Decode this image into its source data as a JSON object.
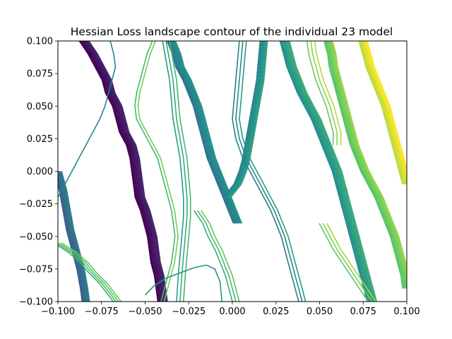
{
  "chart_data": {
    "type": "contour",
    "title": "Hessian Loss landscape contour of the individual 23 model",
    "xlabel": "",
    "ylabel": "",
    "xlim": [
      -0.1,
      0.1
    ],
    "ylim": [
      -0.1,
      0.1
    ],
    "x_ticks": [
      -0.1,
      -0.075,
      -0.05,
      -0.025,
      0.0,
      0.025,
      0.05,
      0.075,
      0.1
    ],
    "x_tick_labels": [
      "−0.100",
      "−0.075",
      "−0.050",
      "−0.025",
      "0.000",
      "0.025",
      "0.050",
      "0.075",
      "0.100"
    ],
    "y_ticks": [
      -0.1,
      -0.075,
      -0.05,
      -0.025,
      0.0,
      0.025,
      0.05,
      0.075,
      0.1
    ],
    "y_tick_labels": [
      "−0.100",
      "−0.075",
      "−0.050",
      "−0.025",
      "0.000",
      "0.025",
      "0.050",
      "0.075",
      "0.100"
    ],
    "grid": false,
    "colormap": "viridis",
    "colormap_stops": [
      "#440154",
      "#3b528b",
      "#21918c",
      "#5ec962",
      "#fde725"
    ],
    "contour_bands": [
      {
        "name": "left-dark-band",
        "level_fraction": 0.05,
        "lines": 10,
        "spacing": 0.0006,
        "points": [
          [
            -0.085,
            0.1
          ],
          [
            -0.08,
            0.09
          ],
          [
            -0.076,
            0.08
          ],
          [
            -0.072,
            0.07
          ],
          [
            -0.07,
            0.06
          ],
          [
            -0.066,
            0.05
          ],
          [
            -0.064,
            0.04
          ],
          [
            -0.062,
            0.03
          ],
          [
            -0.058,
            0.02
          ],
          [
            -0.056,
            0.01
          ],
          [
            -0.055,
            0.0
          ],
          [
            -0.054,
            -0.01
          ],
          [
            -0.053,
            -0.02
          ],
          [
            -0.05,
            -0.03
          ],
          [
            -0.048,
            -0.04
          ],
          [
            -0.046,
            -0.05
          ],
          [
            -0.045,
            -0.06
          ],
          [
            -0.044,
            -0.07
          ],
          [
            -0.042,
            -0.08
          ],
          [
            -0.041,
            -0.09
          ],
          [
            -0.04,
            -0.1
          ]
        ]
      },
      {
        "name": "far-left-band",
        "level_fraction": 0.35,
        "lines": 8,
        "spacing": 0.0006,
        "points": [
          [
            -0.1,
            0.0
          ],
          [
            -0.097,
            -0.015
          ],
          [
            -0.095,
            -0.03
          ],
          [
            -0.093,
            -0.045
          ],
          [
            -0.09,
            -0.06
          ],
          [
            -0.087,
            -0.075
          ],
          [
            -0.085,
            -0.09
          ],
          [
            -0.084,
            -0.1
          ]
        ]
      },
      {
        "name": "center-left-teal-band",
        "level_fraction": 0.45,
        "lines": 9,
        "spacing": 0.0006,
        "points": [
          [
            -0.035,
            0.1
          ],
          [
            -0.032,
            0.09
          ],
          [
            -0.03,
            0.08
          ],
          [
            -0.026,
            0.07
          ],
          [
            -0.023,
            0.06
          ],
          [
            -0.02,
            0.05
          ],
          [
            -0.018,
            0.04
          ],
          [
            -0.016,
            0.03
          ],
          [
            -0.014,
            0.02
          ],
          [
            -0.012,
            0.01
          ],
          [
            -0.009,
            0.0
          ],
          [
            -0.006,
            -0.01
          ],
          [
            -0.003,
            -0.02
          ],
          [
            0.0,
            -0.03
          ],
          [
            0.003,
            -0.04
          ]
        ]
      },
      {
        "name": "center-teal-branch",
        "level_fraction": 0.5,
        "lines": 8,
        "spacing": 0.0006,
        "points": [
          [
            0.018,
            0.1
          ],
          [
            0.017,
            0.085
          ],
          [
            0.016,
            0.07
          ],
          [
            0.014,
            0.055
          ],
          [
            0.012,
            0.04
          ],
          [
            0.01,
            0.025
          ],
          [
            0.008,
            0.01
          ],
          [
            0.006,
            0.0
          ],
          [
            0.003,
            -0.01
          ],
          [
            0.0,
            -0.015
          ],
          [
            -0.003,
            -0.02
          ]
        ]
      },
      {
        "name": "right-teal-band",
        "level_fraction": 0.55,
        "lines": 10,
        "spacing": 0.0006,
        "points": [
          [
            0.03,
            0.1
          ],
          [
            0.032,
            0.09
          ],
          [
            0.034,
            0.08
          ],
          [
            0.037,
            0.07
          ],
          [
            0.04,
            0.06
          ],
          [
            0.044,
            0.05
          ],
          [
            0.048,
            0.04
          ],
          [
            0.051,
            0.03
          ],
          [
            0.054,
            0.02
          ],
          [
            0.057,
            0.01
          ],
          [
            0.06,
            0.0
          ],
          [
            0.062,
            -0.01
          ],
          [
            0.064,
            -0.02
          ],
          [
            0.066,
            -0.03
          ],
          [
            0.068,
            -0.04
          ],
          [
            0.07,
            -0.05
          ],
          [
            0.072,
            -0.06
          ],
          [
            0.074,
            -0.07
          ],
          [
            0.076,
            -0.08
          ],
          [
            0.078,
            -0.09
          ],
          [
            0.08,
            -0.1
          ]
        ]
      },
      {
        "name": "right-green-band",
        "level_fraction": 0.78,
        "lines": 9,
        "spacing": 0.0006,
        "points": [
          [
            0.055,
            0.1
          ],
          [
            0.057,
            0.09
          ],
          [
            0.058,
            0.08
          ],
          [
            0.06,
            0.07
          ],
          [
            0.062,
            0.06
          ],
          [
            0.064,
            0.05
          ],
          [
            0.066,
            0.04
          ],
          [
            0.068,
            0.03
          ],
          [
            0.07,
            0.02
          ],
          [
            0.073,
            0.01
          ],
          [
            0.076,
            0.0
          ],
          [
            0.08,
            -0.01
          ],
          [
            0.084,
            -0.02
          ],
          [
            0.087,
            -0.03
          ],
          [
            0.09,
            -0.04
          ],
          [
            0.093,
            -0.05
          ],
          [
            0.095,
            -0.06
          ],
          [
            0.097,
            -0.07
          ],
          [
            0.099,
            -0.08
          ],
          [
            0.1,
            -0.09
          ]
        ]
      },
      {
        "name": "right-yellow-band",
        "level_fraction": 0.95,
        "lines": 9,
        "spacing": 0.0006,
        "points": [
          [
            0.075,
            0.1
          ],
          [
            0.077,
            0.09
          ],
          [
            0.079,
            0.08
          ],
          [
            0.082,
            0.07
          ],
          [
            0.085,
            0.06
          ],
          [
            0.088,
            0.05
          ],
          [
            0.09,
            0.04
          ],
          [
            0.092,
            0.03
          ],
          [
            0.094,
            0.02
          ],
          [
            0.096,
            0.01
          ],
          [
            0.098,
            0.0
          ],
          [
            0.1,
            -0.01
          ]
        ]
      },
      {
        "name": "lower-left-green-lines",
        "level_fraction": 0.7,
        "lines": 4,
        "spacing": 0.0015,
        "points": [
          [
            -0.1,
            -0.055
          ],
          [
            -0.092,
            -0.062
          ],
          [
            -0.085,
            -0.07
          ],
          [
            -0.08,
            -0.078
          ],
          [
            -0.074,
            -0.086
          ],
          [
            -0.07,
            -0.093
          ],
          [
            -0.066,
            -0.1
          ]
        ]
      },
      {
        "name": "left-teal-line",
        "level_fraction": 0.45,
        "lines": 1,
        "spacing": 0.0,
        "points": [
          [
            -0.07,
            0.1
          ],
          [
            -0.068,
            0.09
          ],
          [
            -0.067,
            0.08
          ],
          [
            -0.069,
            0.07
          ],
          [
            -0.071,
            0.06
          ],
          [
            -0.073,
            0.05
          ],
          [
            -0.076,
            0.04
          ],
          [
            -0.08,
            0.03
          ],
          [
            -0.084,
            0.02
          ],
          [
            -0.088,
            0.01
          ],
          [
            -0.092,
            0.0
          ],
          [
            -0.096,
            -0.01
          ],
          [
            -0.1,
            -0.02
          ]
        ]
      },
      {
        "name": "left-green-line",
        "level_fraction": 0.72,
        "lines": 2,
        "spacing": 0.0018,
        "points": [
          [
            -0.045,
            0.1
          ],
          [
            -0.048,
            0.09
          ],
          [
            -0.05,
            0.08
          ],
          [
            -0.052,
            0.07
          ],
          [
            -0.054,
            0.06
          ],
          [
            -0.055,
            0.05
          ],
          [
            -0.054,
            0.04
          ],
          [
            -0.05,
            0.03
          ],
          [
            -0.046,
            0.02
          ],
          [
            -0.042,
            0.01
          ],
          [
            -0.04,
            0.0
          ],
          [
            -0.038,
            -0.01
          ],
          [
            -0.036,
            -0.02
          ],
          [
            -0.034,
            -0.03
          ],
          [
            -0.033,
            -0.04
          ],
          [
            -0.032,
            -0.05
          ],
          [
            -0.033,
            -0.06
          ],
          [
            -0.034,
            -0.07
          ],
          [
            -0.036,
            -0.08
          ],
          [
            -0.038,
            -0.09
          ],
          [
            -0.04,
            -0.1
          ]
        ]
      },
      {
        "name": "center-green-lines",
        "level_fraction": 0.6,
        "lines": 3,
        "spacing": 0.002,
        "points": [
          [
            -0.038,
            0.1
          ],
          [
            -0.036,
            0.085
          ],
          [
            -0.034,
            0.07
          ],
          [
            -0.033,
            0.055
          ],
          [
            -0.032,
            0.04
          ],
          [
            -0.03,
            0.025
          ],
          [
            -0.028,
            0.01
          ],
          [
            -0.027,
            -0.005
          ],
          [
            -0.026,
            -0.02
          ],
          [
            -0.026,
            -0.035
          ],
          [
            -0.027,
            -0.05
          ],
          [
            -0.028,
            -0.065
          ],
          [
            -0.029,
            -0.08
          ],
          [
            -0.03,
            -0.1
          ]
        ]
      },
      {
        "name": "mid-right-teal-lines",
        "level_fraction": 0.48,
        "lines": 3,
        "spacing": 0.002,
        "points": [
          [
            0.006,
            0.1
          ],
          [
            0.005,
            0.085
          ],
          [
            0.004,
            0.07
          ],
          [
            0.003,
            0.055
          ],
          [
            0.002,
            0.04
          ],
          [
            0.004,
            0.025
          ],
          [
            0.008,
            0.01
          ],
          [
            0.012,
            0.0
          ],
          [
            0.016,
            -0.01
          ],
          [
            0.02,
            -0.02
          ],
          [
            0.024,
            -0.03
          ],
          [
            0.027,
            -0.04
          ],
          [
            0.03,
            -0.05
          ],
          [
            0.032,
            -0.06
          ],
          [
            0.034,
            -0.07
          ],
          [
            0.036,
            -0.08
          ],
          [
            0.038,
            -0.09
          ],
          [
            0.04,
            -0.1
          ]
        ]
      },
      {
        "name": "lower-center-green-lines",
        "level_fraction": 0.68,
        "lines": 3,
        "spacing": 0.002,
        "points": [
          [
            -0.02,
            -0.03
          ],
          [
            -0.015,
            -0.04
          ],
          [
            -0.012,
            -0.05
          ],
          [
            -0.008,
            -0.06
          ],
          [
            -0.005,
            -0.07
          ],
          [
            -0.002,
            -0.08
          ],
          [
            0.0,
            -0.09
          ],
          [
            0.002,
            -0.1
          ]
        ]
      },
      {
        "name": "lower-center-teal-line",
        "level_fraction": 0.52,
        "lines": 1,
        "spacing": 0.0,
        "points": [
          [
            -0.05,
            -0.095
          ],
          [
            -0.045,
            -0.088
          ],
          [
            -0.038,
            -0.082
          ],
          [
            -0.03,
            -0.078
          ],
          [
            -0.022,
            -0.074
          ],
          [
            -0.015,
            -0.072
          ],
          [
            -0.01,
            -0.075
          ],
          [
            -0.007,
            -0.085
          ],
          [
            -0.006,
            -0.1
          ]
        ]
      },
      {
        "name": "right-inner-green-lines",
        "level_fraction": 0.8,
        "lines": 3,
        "spacing": 0.0022,
        "points": [
          [
            0.052,
            -0.04
          ],
          [
            0.056,
            -0.05
          ],
          [
            0.06,
            -0.06
          ],
          [
            0.065,
            -0.07
          ],
          [
            0.07,
            -0.08
          ],
          [
            0.075,
            -0.09
          ],
          [
            0.08,
            -0.1
          ]
        ]
      },
      {
        "name": "right-upper-green-lines",
        "level_fraction": 0.82,
        "lines": 3,
        "spacing": 0.0022,
        "points": [
          [
            0.045,
            0.1
          ],
          [
            0.046,
            0.09
          ],
          [
            0.048,
            0.08
          ],
          [
            0.05,
            0.07
          ],
          [
            0.053,
            0.06
          ],
          [
            0.056,
            0.05
          ],
          [
            0.058,
            0.04
          ],
          [
            0.06,
            0.03
          ],
          [
            0.06,
            0.02
          ]
        ]
      }
    ]
  }
}
